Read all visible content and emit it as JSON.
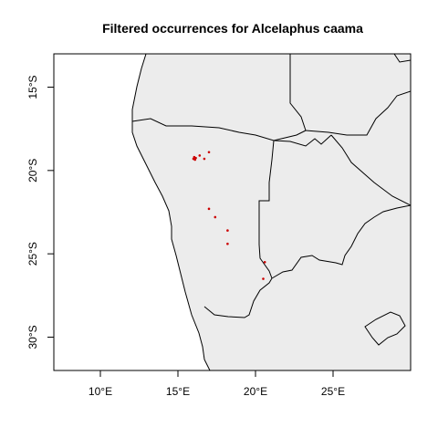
{
  "title": "Filtered occurrences for Alcelaphus caama",
  "chart_data": {
    "type": "scatter",
    "title": "Filtered occurrences for Alcelaphus caama",
    "xlabel": "",
    "ylabel": "",
    "xlim": [
      7,
      30
    ],
    "ylim": [
      -32,
      -13
    ],
    "x_ticks": [
      10,
      15,
      20,
      25
    ],
    "x_tick_labels": [
      "10°E",
      "15°E",
      "20°E",
      "25°E"
    ],
    "y_ticks": [
      -15,
      -20,
      -25,
      -30
    ],
    "y_tick_labels": [
      "15°S",
      "20°S",
      "25°S",
      "30°S"
    ],
    "land_color": "#ececec",
    "border_color": "#000000",
    "point_color": "#cc0000",
    "series": [
      {
        "x": [
          16.0,
          16.05,
          16.1,
          16.15,
          16.4,
          16.7,
          17.0,
          17.0,
          17.4,
          18.2,
          18.2,
          20.6,
          20.5
        ],
        "y": [
          -19.3,
          -19.2,
          -19.35,
          -19.25,
          -19.1,
          -19.3,
          -18.9,
          -22.3,
          -22.8,
          -23.6,
          -24.4,
          -25.5,
          -26.5
        ]
      }
    ]
  }
}
